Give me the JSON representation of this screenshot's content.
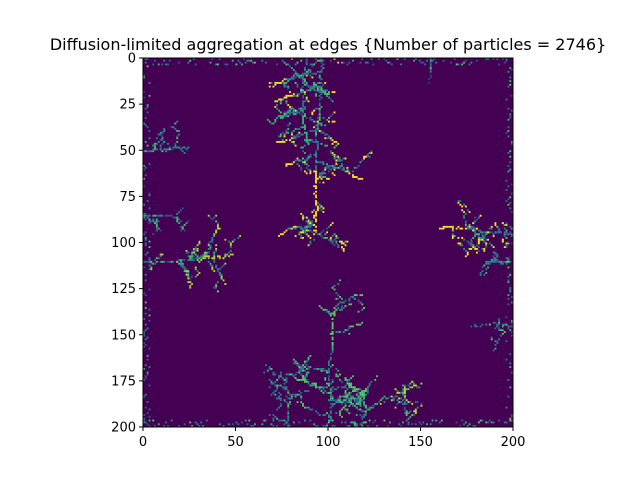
{
  "chart_data": {
    "type": "heatmap",
    "title": "Diffusion-limited aggregation at edges {Number of particles = 2746}",
    "xlabel": "",
    "ylabel": "",
    "xlim": [
      0,
      200
    ],
    "ylim": [
      200,
      0
    ],
    "grid": false,
    "legend": "none",
    "colormap": "viridis",
    "background_color": "#440154",
    "x_ticks": [
      0,
      50,
      100,
      150,
      200
    ],
    "y_ticks": [
      0,
      25,
      50,
      75,
      100,
      125,
      150,
      175,
      200
    ],
    "x_tick_labels": [
      "0",
      "50",
      "100",
      "150",
      "200"
    ],
    "y_tick_labels": [
      "0",
      "25",
      "50",
      "75",
      "100",
      "125",
      "150",
      "175",
      "200"
    ],
    "clusters": [
      {
        "side": "top",
        "x": 96,
        "y": 0,
        "length": 95,
        "color": "#fde725"
      },
      {
        "side": "top",
        "x": 88,
        "y": 0,
        "length": 45,
        "color": "#35b779"
      },
      {
        "side": "bottom",
        "x": 100,
        "y": 200,
        "length": 65,
        "color": "#5ec962"
      },
      {
        "side": "left",
        "x": 0,
        "y": 110,
        "length": 52,
        "color": "#addc30"
      },
      {
        "side": "left",
        "x": 0,
        "y": 50,
        "length": 28,
        "color": "#21918c"
      },
      {
        "side": "left",
        "x": 0,
        "y": 85,
        "length": 20,
        "color": "#3b528b"
      },
      {
        "side": "right",
        "x": 200,
        "y": 95,
        "length": 45,
        "color": "#fde725"
      },
      {
        "side": "right",
        "x": 200,
        "y": 145,
        "length": 22,
        "color": "#31688e"
      },
      {
        "side": "bottom",
        "x": 78,
        "y": 200,
        "length": 28,
        "color": "#2a788e"
      },
      {
        "side": "bottom",
        "x": 143,
        "y": 200,
        "length": 25,
        "color": "#b5de2b"
      },
      {
        "side": "bottom",
        "x": 118,
        "y": 200,
        "length": 20,
        "color": "#35b779"
      },
      {
        "side": "top",
        "x": 155,
        "y": 0,
        "length": 12,
        "color": "#443983"
      },
      {
        "side": "right",
        "x": 200,
        "y": 110,
        "length": 15,
        "color": "#26828e"
      }
    ]
  }
}
